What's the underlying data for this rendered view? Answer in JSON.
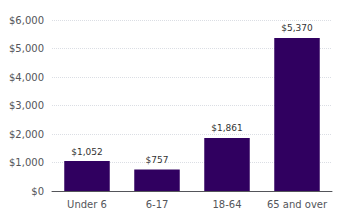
{
  "chart_data": {
    "type": "bar",
    "categories": [
      "Under 6",
      "6-17",
      "18-64",
      "65 and over"
    ],
    "values": [
      1052,
      757,
      1861,
      5370
    ],
    "value_labels": [
      "$1,052",
      "$757",
      "$1,861",
      "$5,370"
    ],
    "data_labels": true,
    "color": "#300060",
    "ylim": [
      0,
      6000
    ],
    "yticks": [
      {
        "value": 0,
        "label": "$0"
      },
      {
        "value": 1000,
        "label": "$1,000"
      },
      {
        "value": 2000,
        "label": "$2,000"
      },
      {
        "value": 3000,
        "label": "$3,000"
      },
      {
        "value": 4000,
        "label": "$4,000"
      },
      {
        "value": 5000,
        "label": "$5,000"
      },
      {
        "value": 6000,
        "label": "$6,000"
      }
    ],
    "grid": true
  }
}
